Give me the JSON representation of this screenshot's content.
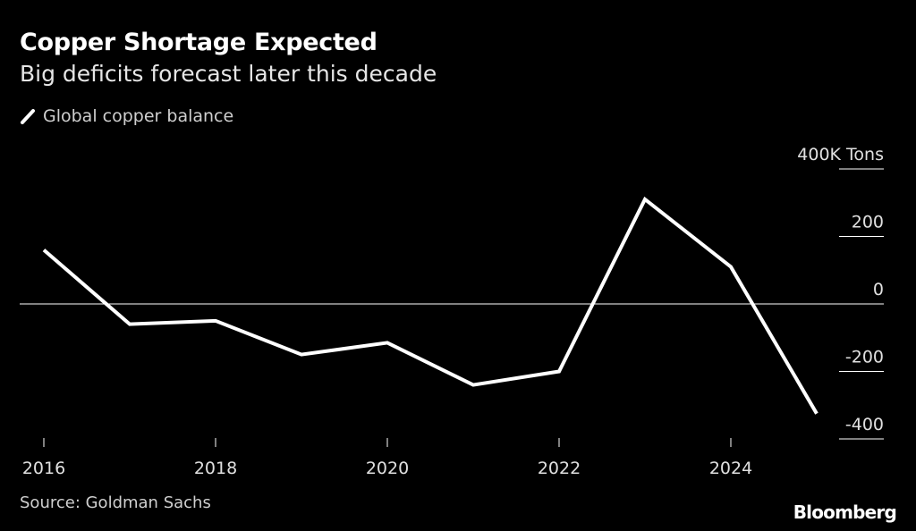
{
  "header": {
    "title": "Copper Shortage Expected",
    "subtitle": "Big deficits forecast later this decade"
  },
  "footer": {
    "source": "Source: Goldman Sachs",
    "logo": "Bloomberg"
  },
  "chart_data": {
    "type": "line",
    "title": "Copper Shortage Expected",
    "subtitle": "Big deficits forecast later this decade",
    "legend": {
      "placement": "top-left",
      "entries": [
        "Global copper balance"
      ]
    },
    "x": [
      2016,
      2017,
      2018,
      2019,
      2020,
      2021,
      2022,
      2023,
      2024,
      2025
    ],
    "series": [
      {
        "name": "Global copper balance",
        "color": "#ffffff",
        "values": [
          160,
          -60,
          -50,
          -150,
          -115,
          -240,
          -200,
          310,
          110,
          -325
        ]
      }
    ],
    "xlim": [
      2016,
      2025
    ],
    "ylim": [
      -400,
      400
    ],
    "x_ticks": [
      2016,
      2018,
      2020,
      2022,
      2024
    ],
    "y_ticks": [
      {
        "value": 400,
        "label": "400K Tons"
      },
      {
        "value": 200,
        "label": "200"
      },
      {
        "value": 0,
        "label": "0"
      },
      {
        "value": -200,
        "label": "-200"
      },
      {
        "value": -400,
        "label": "-400"
      }
    ],
    "zero_line": true,
    "grid": false
  }
}
